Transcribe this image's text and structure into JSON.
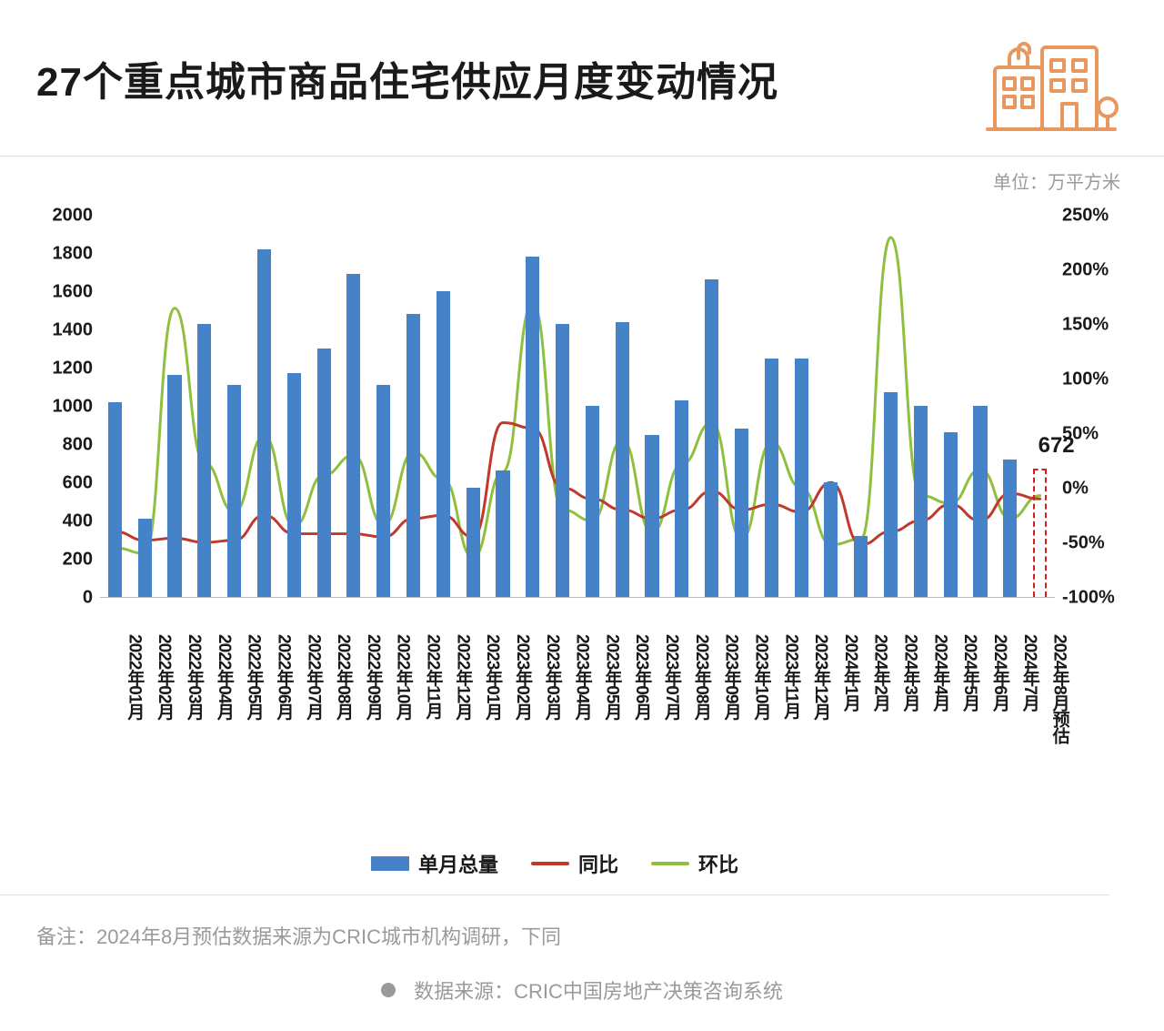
{
  "title": "27个重点城市商品住宅供应月度变动情况",
  "unit_label": "单位：万平方米",
  "note": "备注：2024年8月预估数据来源为CRIC城市机构调研，下同",
  "source_label": "数据来源：CRIC中国房地产决策咨询系统",
  "legend": {
    "bar": "单月总量",
    "line1": "同比",
    "line2": "环比"
  },
  "callout_value": "672",
  "chart": {
    "type": "bar+line",
    "bar_color": "#4682c8",
    "forecast_border_color": "#d02020",
    "line1_color": "#c0392b",
    "line2_color": "#8fbf3f",
    "line_width": 3,
    "background_color": "#ffffff",
    "axis_color": "#bababa",
    "label_color": "#1a1a1a",
    "label_fontsize": 20,
    "title_fontsize": 44,
    "bar_width_ratio": 0.46,
    "y_left": {
      "min": 0,
      "max": 2000,
      "step": 200
    },
    "y_right": {
      "min": -100,
      "max": 250,
      "step": 50,
      "suffix": "%"
    },
    "categories": [
      "2022年01月",
      "2022年02月",
      "2022年03月",
      "2022年04月",
      "2022年05月",
      "2022年06月",
      "2022年07月",
      "2022年08月",
      "2022年09月",
      "2022年10月",
      "2022年11月",
      "2022年12月",
      "2023年01月",
      "2023年02月",
      "2023年03月",
      "2023年04月",
      "2023年05月",
      "2023年06月",
      "2023年07月",
      "2023年08月",
      "2023年09月",
      "2023年10月",
      "2023年11月",
      "2023年12月",
      "2024年1月",
      "2024年2月",
      "2024年3月",
      "2024年4月",
      "2024年5月",
      "2024年6月",
      "2024年7月",
      "2024年8月预估"
    ],
    "bar_values": [
      1020,
      410,
      1160,
      1430,
      1110,
      1820,
      1170,
      1300,
      1690,
      1110,
      1480,
      1600,
      570,
      660,
      1780,
      1430,
      1000,
      1440,
      850,
      1030,
      1660,
      880,
      1250,
      1250,
      600,
      320,
      1070,
      1000,
      860,
      1000,
      720,
      672
    ],
    "forecast_index": 31,
    "line1_values": [
      -40,
      -48,
      -46,
      -50,
      -48,
      -25,
      -42,
      -42,
      -42,
      -45,
      -28,
      -25,
      -45,
      60,
      55,
      0,
      -10,
      -20,
      -28,
      -20,
      -3,
      -20,
      -15,
      -22,
      5,
      -52,
      -40,
      -30,
      -15,
      -30,
      -5,
      -10
    ],
    "line2_values": [
      -55,
      -60,
      165,
      23,
      -22,
      48,
      -35,
      12,
      30,
      -34,
      33,
      8,
      -64,
      15,
      170,
      -20,
      -30,
      44,
      -41,
      22,
      60,
      -47,
      42,
      0,
      -52,
      -47,
      230,
      -7,
      -14,
      17,
      -28,
      -7
    ]
  }
}
